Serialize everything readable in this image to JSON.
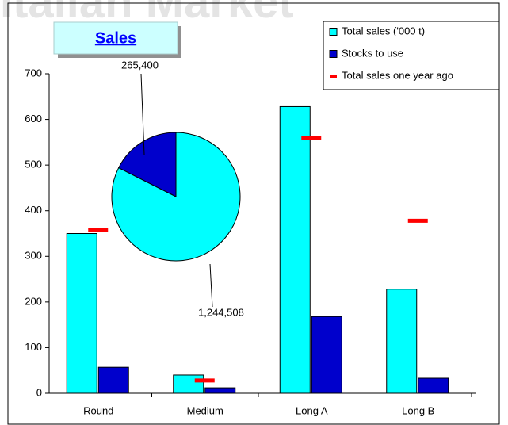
{
  "header": {
    "title": "Italian Market",
    "button": "Sales"
  },
  "chart_data": [
    {
      "type": "bar",
      "categories": [
        "Round",
        "Medium",
        "Long A",
        "Long B"
      ],
      "series": [
        {
          "name": "Total sales ('000 t)",
          "color": "#00ffff",
          "values": [
            350,
            40,
            628,
            228
          ]
        },
        {
          "name": "Stocks to use",
          "color": "#0000cc",
          "values": [
            57,
            12,
            168,
            33
          ]
        },
        {
          "name": "Total sales one year ago",
          "color": "#ff0000",
          "values": [
            357,
            28,
            560,
            378
          ],
          "marker": "dash"
        }
      ],
      "ylim": [
        0,
        700
      ],
      "yticks": [
        0,
        100,
        200,
        300,
        400,
        500,
        600,
        700
      ],
      "legend": "top-right"
    },
    {
      "type": "pie",
      "values": [
        1244508,
        265400
      ],
      "value_labels": [
        "1,244,508",
        "265,400"
      ],
      "colors": [
        "#00ffff",
        "#0000cc"
      ]
    }
  ]
}
